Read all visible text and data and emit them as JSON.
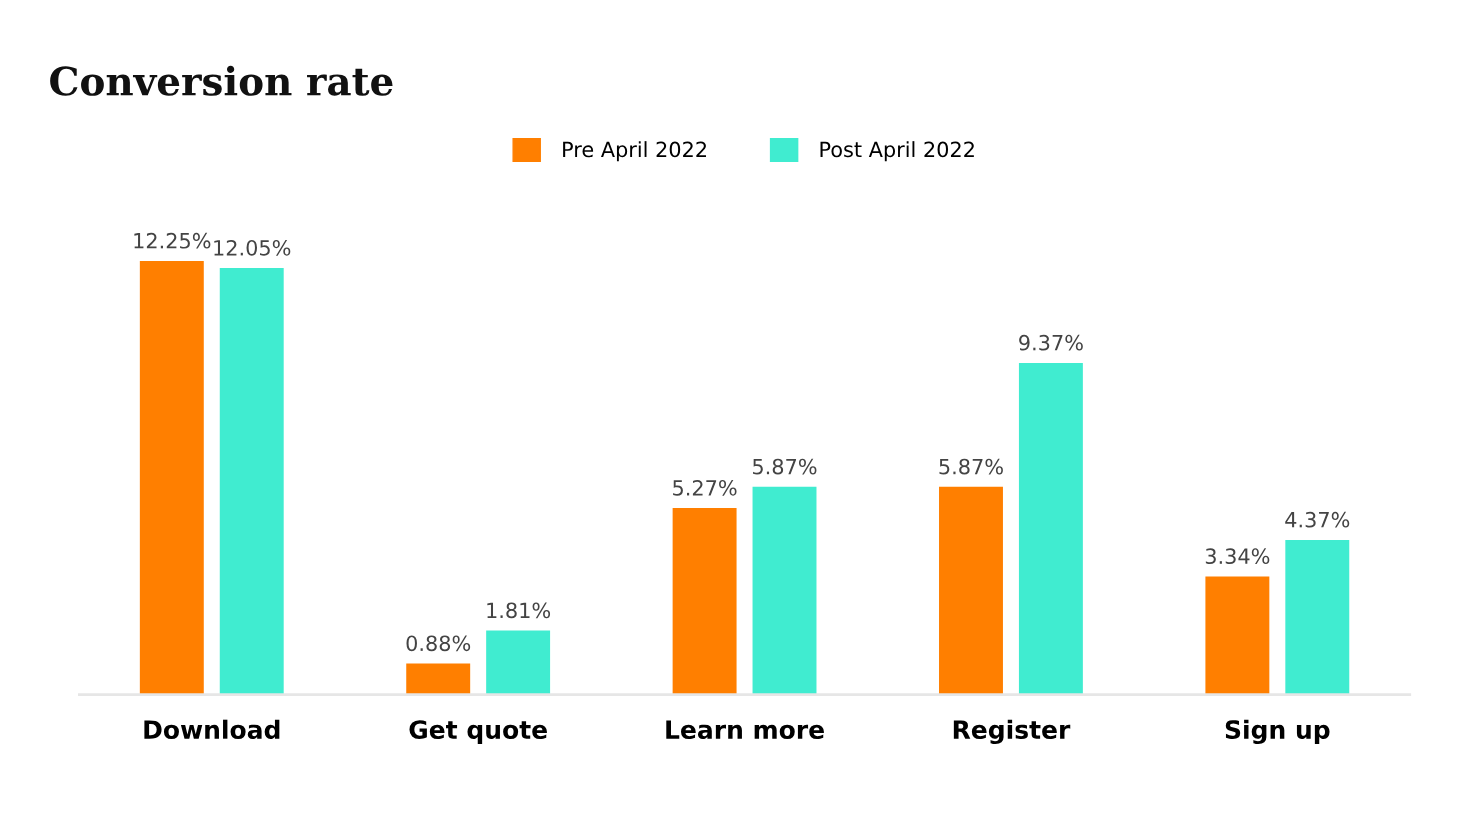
{
  "chart_data": {
    "type": "bar",
    "title": "Conversion rate",
    "categories": [
      "Download",
      "Get quote",
      "Learn more",
      "Register",
      "Sign up"
    ],
    "series": [
      {
        "name": "Pre April 2022",
        "color": "#ff7f00",
        "values": [
          12.25,
          0.88,
          5.27,
          5.87,
          3.34
        ],
        "value_labels": [
          "12.25%",
          "0.88%",
          "5.27%",
          "5.87%",
          "3.34%"
        ]
      },
      {
        "name": "Post April 2022",
        "color": "#40ecd0",
        "values": [
          12.05,
          1.81,
          5.87,
          9.37,
          4.37
        ],
        "value_labels": [
          "12.05%",
          "1.81%",
          "5.87%",
          "9.37%",
          "4.37%"
        ]
      }
    ],
    "legend": "top",
    "grid": false
  }
}
